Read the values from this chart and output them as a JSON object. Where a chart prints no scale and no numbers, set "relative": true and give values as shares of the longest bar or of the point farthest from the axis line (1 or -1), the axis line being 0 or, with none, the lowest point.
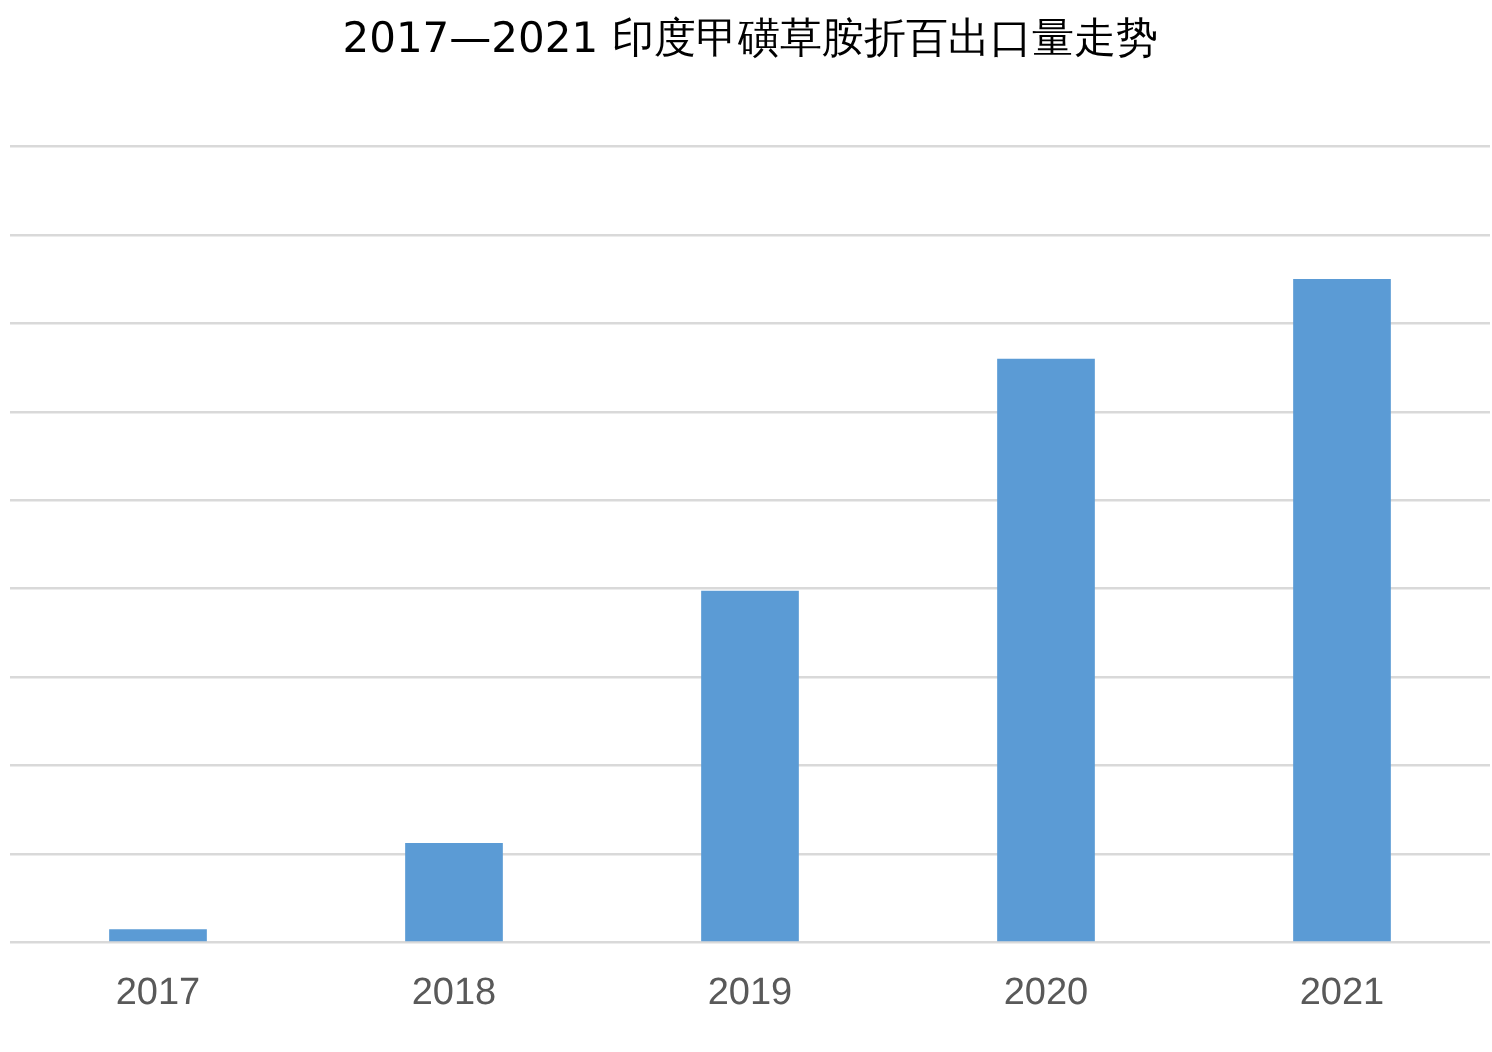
{
  "chart_data": {
    "type": "bar",
    "title": "2017—2021 印度甲磺草胺折百出口量走势",
    "categories": [
      "2017",
      "2018",
      "2019",
      "2020",
      "2021"
    ],
    "values": [
      0.02,
      0.15,
      0.53,
      0.88,
      1
    ],
    "color": "#5b9bd5",
    "relative": true,
    "grid": "y",
    "legend": false
  }
}
